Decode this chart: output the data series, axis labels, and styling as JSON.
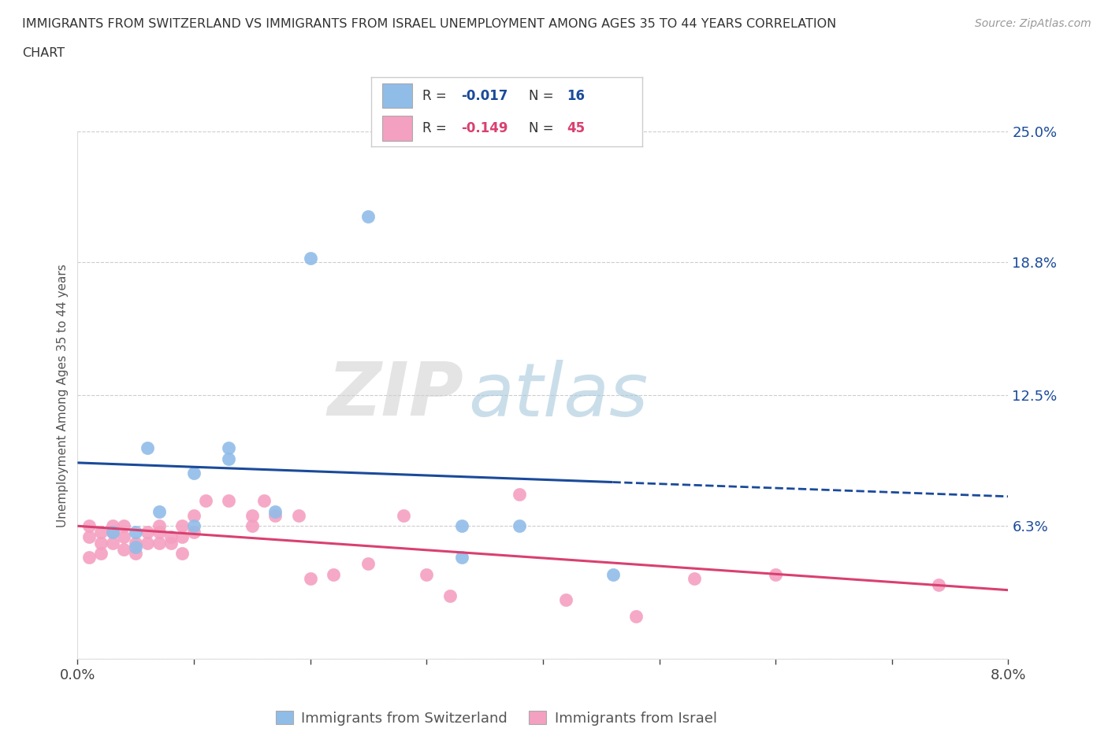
{
  "title_line1": "IMMIGRANTS FROM SWITZERLAND VS IMMIGRANTS FROM ISRAEL UNEMPLOYMENT AMONG AGES 35 TO 44 YEARS CORRELATION",
  "title_line2": "CHART",
  "source_text": "Source: ZipAtlas.com",
  "ylabel": "Unemployment Among Ages 35 to 44 years",
  "xlim": [
    0.0,
    0.08
  ],
  "ylim": [
    0.0,
    0.25
  ],
  "xtick_positions": [
    0.0,
    0.01,
    0.02,
    0.03,
    0.04,
    0.05,
    0.06,
    0.07,
    0.08
  ],
  "ytick_positions": [
    0.0,
    0.063,
    0.125,
    0.188,
    0.25
  ],
  "ytick_labels": [
    "",
    "6.3%",
    "12.5%",
    "18.8%",
    "25.0%"
  ],
  "background_color": "#ffffff",
  "grid_color": "#cccccc",
  "switzerland_color": "#90bce8",
  "israel_color": "#f4a0c0",
  "switzerland_line_color": "#1a4a9a",
  "israel_line_color": "#d94070",
  "switzerland_R": -0.017,
  "switzerland_N": 16,
  "israel_R": -0.149,
  "israel_N": 45,
  "swiss_x": [
    0.003,
    0.005,
    0.005,
    0.006,
    0.007,
    0.01,
    0.01,
    0.013,
    0.013,
    0.017,
    0.02,
    0.025,
    0.033,
    0.033,
    0.038,
    0.046
  ],
  "swiss_y": [
    0.06,
    0.053,
    0.06,
    0.1,
    0.07,
    0.088,
    0.063,
    0.1,
    0.095,
    0.07,
    0.19,
    0.21,
    0.063,
    0.048,
    0.063,
    0.04
  ],
  "israel_x": [
    0.001,
    0.001,
    0.001,
    0.002,
    0.002,
    0.002,
    0.003,
    0.003,
    0.003,
    0.004,
    0.004,
    0.004,
    0.005,
    0.005,
    0.006,
    0.006,
    0.007,
    0.007,
    0.007,
    0.008,
    0.008,
    0.009,
    0.009,
    0.009,
    0.01,
    0.01,
    0.011,
    0.013,
    0.015,
    0.015,
    0.016,
    0.017,
    0.019,
    0.02,
    0.022,
    0.025,
    0.028,
    0.03,
    0.032,
    0.038,
    0.042,
    0.048,
    0.053,
    0.06,
    0.074
  ],
  "israel_y": [
    0.058,
    0.063,
    0.048,
    0.055,
    0.06,
    0.05,
    0.06,
    0.055,
    0.063,
    0.058,
    0.052,
    0.063,
    0.055,
    0.05,
    0.06,
    0.055,
    0.063,
    0.055,
    0.06,
    0.055,
    0.058,
    0.058,
    0.05,
    0.063,
    0.068,
    0.06,
    0.075,
    0.075,
    0.063,
    0.068,
    0.075,
    0.068,
    0.068,
    0.038,
    0.04,
    0.045,
    0.068,
    0.04,
    0.03,
    0.078,
    0.028,
    0.02,
    0.038,
    0.04,
    0.035
  ],
  "bottom_legend_labels": [
    "Immigrants from Switzerland",
    "Immigrants from Israel"
  ]
}
